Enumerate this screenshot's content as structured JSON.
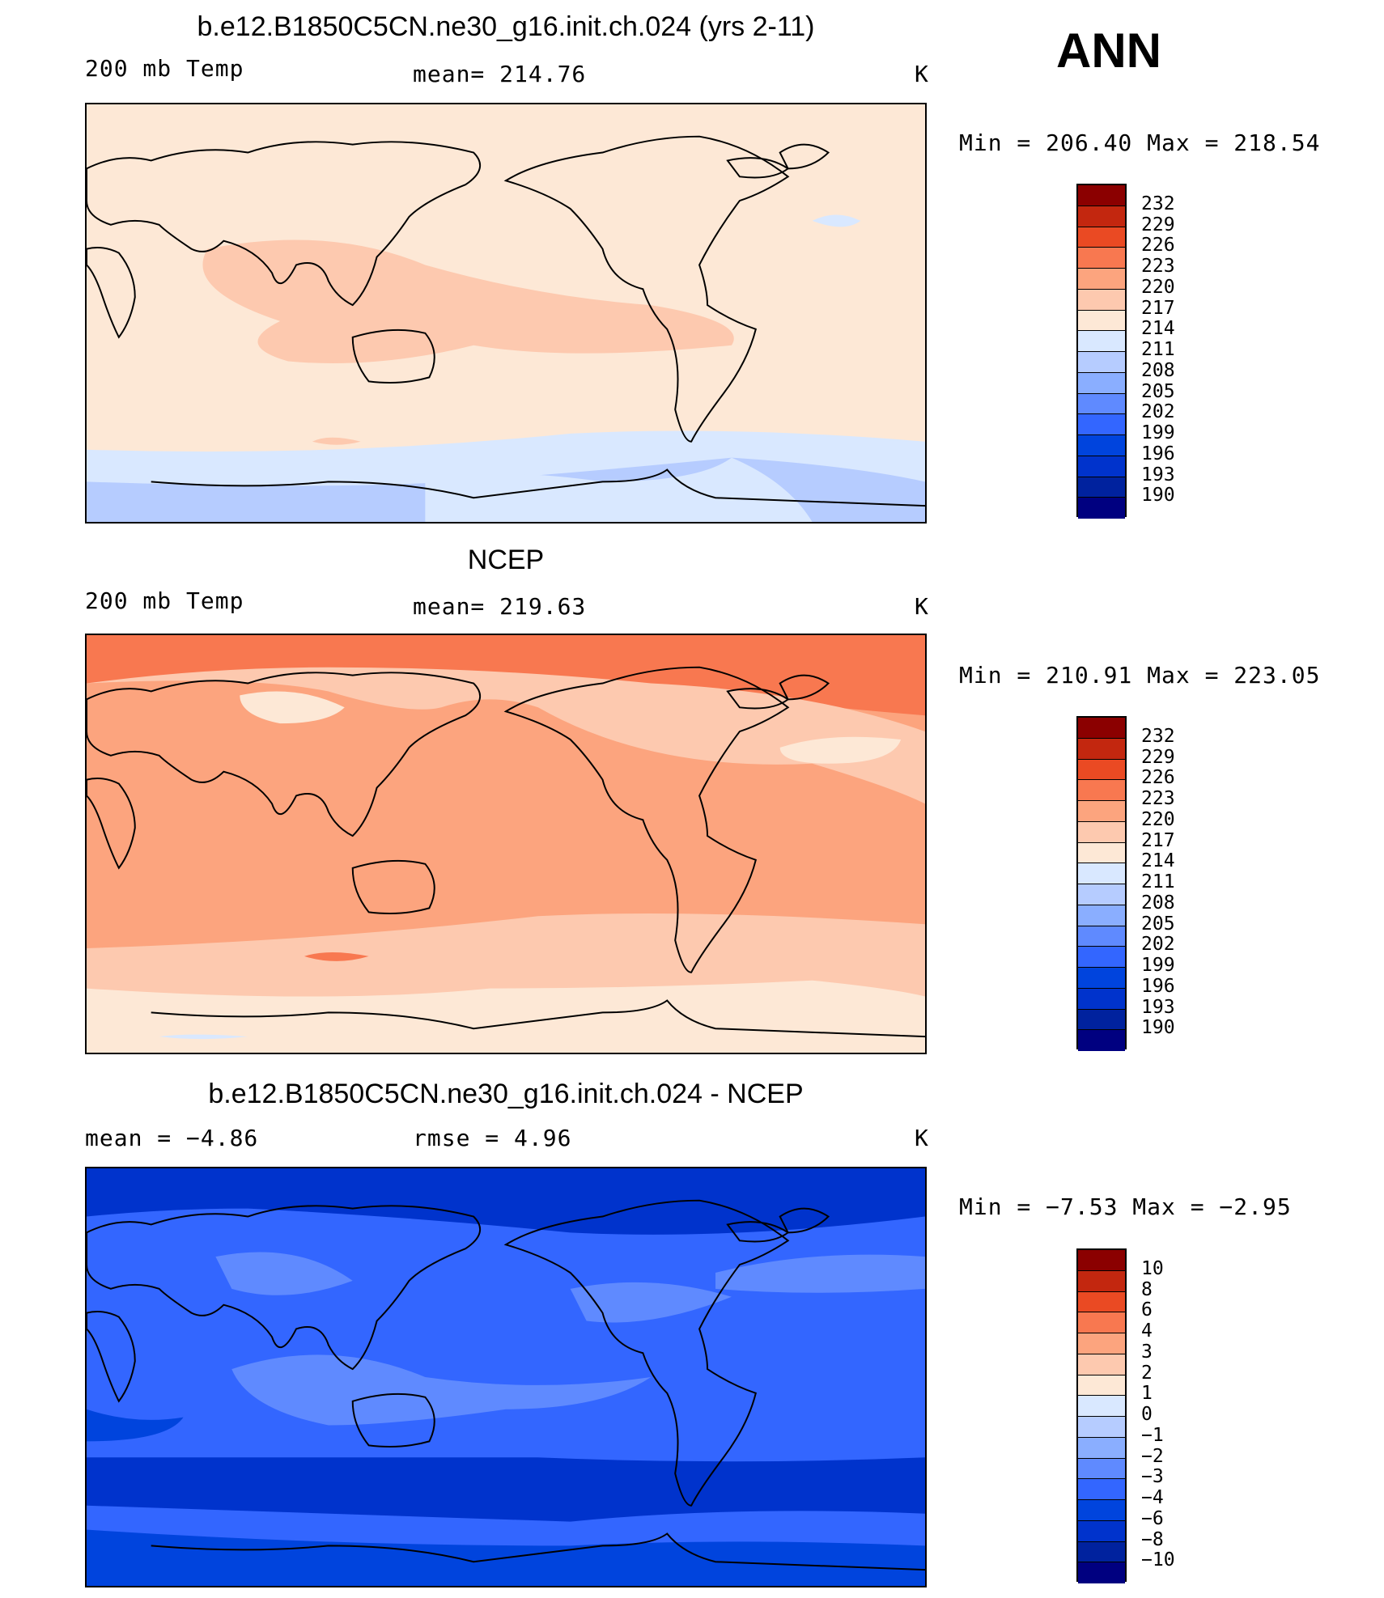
{
  "season": "ANN",
  "units": "K",
  "palettes": {
    "abs": [
      "#000080",
      "#00229e",
      "#0033cc",
      "#0044dd",
      "#3366ff",
      "#5f8aff",
      "#8aaeff",
      "#b6ccff",
      "#d9e8ff",
      "#fde8d6",
      "#fdc9af",
      "#fca47e",
      "#f87850",
      "#ea4a23",
      "#c3270f",
      "#8b0000"
    ],
    "diff": [
      "#000080",
      "#00229e",
      "#0033cc",
      "#0044dd",
      "#3366ff",
      "#5f8aff",
      "#8aaeff",
      "#b6ccff",
      "#d9e8ff",
      "#fde8d6",
      "#fdc9af",
      "#fca47e",
      "#f87850",
      "#ea4a23",
      "#c3270f",
      "#8b0000"
    ]
  },
  "panels": [
    {
      "title": "b.e12.B1850C5CN.ne30_g16.init.ch.024 (yrs 2-11)",
      "left_label": "200 mb Temp",
      "center_label": "mean=  214.76",
      "units": "K",
      "minmax": "Min  =  206.40  Max  =  218.54",
      "levels": [
        "232",
        "229",
        "226",
        "223",
        "220",
        "217",
        "214",
        "211",
        "208",
        "205",
        "202",
        "199",
        "196",
        "193",
        "190"
      ],
      "field": "model"
    },
    {
      "title": "NCEP",
      "left_label": "200 mb Temp",
      "center_label": "mean=  219.63",
      "units": "K",
      "minmax": "Min  =  210.91  Max  =  223.05",
      "levels": [
        "232",
        "229",
        "226",
        "223",
        "220",
        "217",
        "214",
        "211",
        "208",
        "205",
        "202",
        "199",
        "196",
        "193",
        "190"
      ],
      "field": "obs"
    },
    {
      "title": "b.e12.B1850C5CN.ne30_g16.init.ch.024 - NCEP",
      "left_label": "mean  =    −4.86",
      "center_label": "rmse  =     4.96",
      "units": "K",
      "minmax": "Min  =   −7.53  Max  =   −2.95",
      "levels": [
        "10",
        "8",
        "6",
        "4",
        "3",
        "2",
        "1",
        "0",
        "−1",
        "−2",
        "−3",
        "−4",
        "−6",
        "−8",
        "−10"
      ],
      "field": "diff"
    }
  ]
}
